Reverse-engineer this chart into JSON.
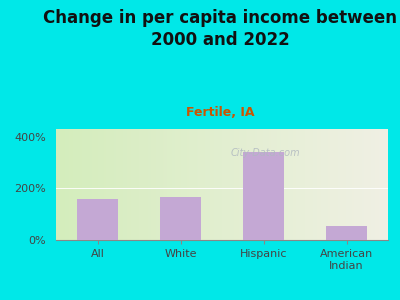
{
  "title": "Change in per capita income between\n2000 and 2022",
  "subtitle": "Fertile, IA",
  "categories": [
    "All",
    "White",
    "Hispanic",
    "American\nIndian"
  ],
  "values": [
    160,
    165,
    340,
    55
  ],
  "bar_color": "#c4a8d4",
  "title_fontsize": 12,
  "subtitle_fontsize": 9,
  "subtitle_color": "#cc5500",
  "background_outer": "#00e8e8",
  "yticks": [
    0,
    200,
    400
  ],
  "ytick_labels": [
    "0%",
    "200%",
    "400%"
  ],
  "ylim": [
    0,
    430
  ],
  "watermark": "City-Data.com",
  "watermark_color": "#b0b8c0",
  "tick_label_fontsize": 8,
  "grad_left": "#d4edbc",
  "grad_right": "#f0f0e4"
}
